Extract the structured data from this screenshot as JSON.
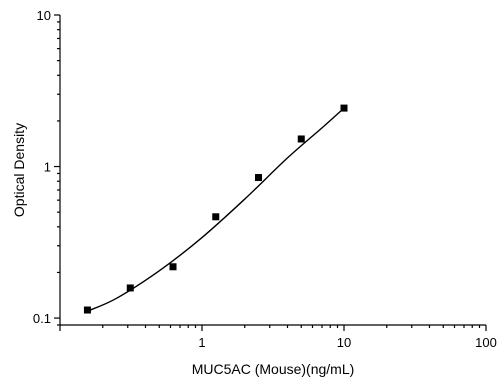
{
  "chart_data": {
    "type": "scatter",
    "title": "",
    "xlabel": "MUC5AC (Mouse)(ng/mL)",
    "ylabel": "Optical Density",
    "x_scale": "log",
    "y_scale": "log",
    "xlim": [
      0.1,
      100
    ],
    "ylim": [
      0.09,
      10
    ],
    "x_ticks": [
      {
        "value": 1,
        "label": "1"
      },
      {
        "value": 10,
        "label": "10"
      },
      {
        "value": 100,
        "label": "100"
      }
    ],
    "y_ticks": [
      {
        "value": 0.1,
        "label": "0.1"
      },
      {
        "value": 1,
        "label": "1"
      },
      {
        "value": 10,
        "label": "10"
      }
    ],
    "series": [
      {
        "x": [
          0.156,
          0.3125,
          0.625,
          1.25,
          2.5,
          5,
          10
        ],
        "y": [
          0.113,
          0.158,
          0.218,
          0.466,
          0.846,
          1.52,
          2.43
        ]
      }
    ],
    "fit_curve": {
      "x": [
        0.156,
        0.25,
        0.5,
        1,
        2,
        4,
        7,
        10
      ],
      "y": [
        0.111,
        0.135,
        0.205,
        0.34,
        0.61,
        1.14,
        1.8,
        2.43
      ]
    },
    "grid": false,
    "legend": "none"
  }
}
